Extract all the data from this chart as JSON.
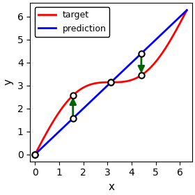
{
  "title": "",
  "xlabel": "x",
  "ylabel": "y",
  "xlim": [
    -0.2,
    6.5
  ],
  "ylim": [
    -0.3,
    6.6
  ],
  "x_range_start": 0,
  "x_range_end": 6.2832,
  "target_color": "#FF0000",
  "prediction_color": "#0000FF",
  "arrow_color": "#006400",
  "point_color": "#000000",
  "legend_labels": [
    "target",
    "prediction"
  ],
  "sample_points_x": [
    0.0,
    1.5707963,
    3.1415926,
    4.3982297
  ],
  "figsize": [
    2.8,
    2.8
  ],
  "dpi": 100
}
